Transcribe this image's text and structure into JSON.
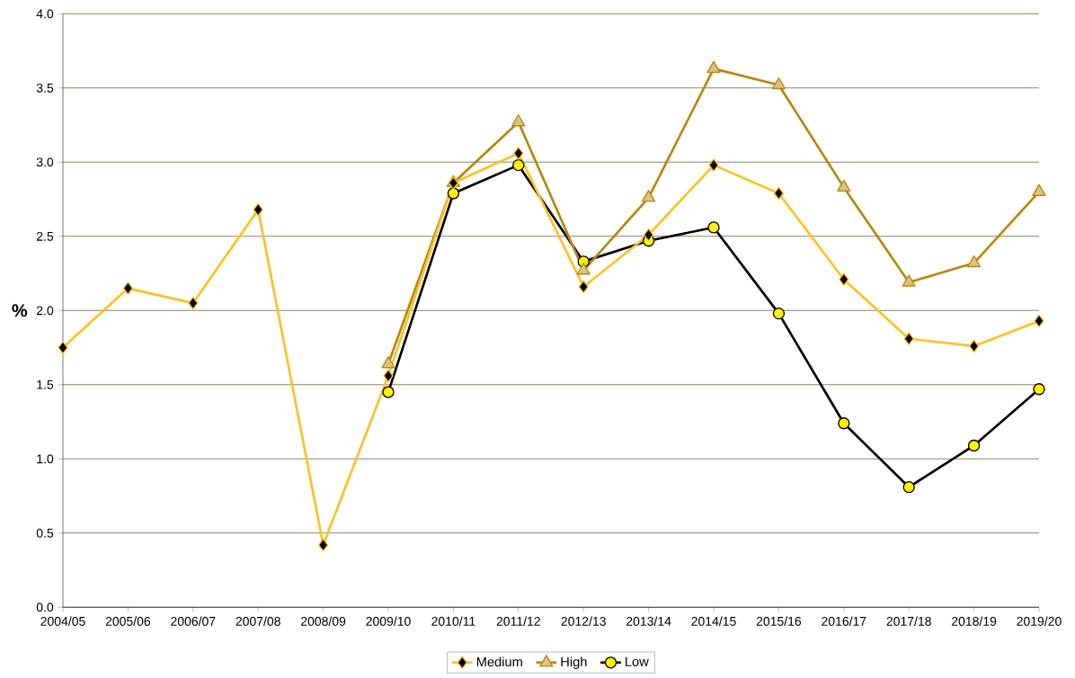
{
  "chart_data": {
    "type": "line",
    "ylabel": "%",
    "categories": [
      "2004/05",
      "2005/06",
      "2006/07",
      "2007/08",
      "2008/09",
      "2009/10",
      "2010/11",
      "2011/12",
      "2012/13",
      "2013/14",
      "2014/15",
      "2015/16",
      "2016/17",
      "2017/18",
      "2018/19",
      "2019/20"
    ],
    "series": [
      {
        "name": "Medium",
        "color": "#ffc020",
        "marker": "diamond",
        "values": [
          1.75,
          2.15,
          2.05,
          2.68,
          0.42,
          1.56,
          2.86,
          3.06,
          2.16,
          2.51,
          2.98,
          2.79,
          2.21,
          1.81,
          1.76,
          1.93
        ]
      },
      {
        "name": "High",
        "color": "#b8860b",
        "marker": "triangle",
        "values": [
          null,
          null,
          null,
          null,
          null,
          1.64,
          2.86,
          3.27,
          2.27,
          2.76,
          3.63,
          3.52,
          2.83,
          2.19,
          2.32,
          2.8
        ]
      },
      {
        "name": "Low",
        "color": "#000000",
        "marker": "circle",
        "values": [
          null,
          null,
          null,
          null,
          null,
          1.45,
          2.79,
          2.98,
          2.33,
          2.47,
          2.56,
          1.98,
          1.24,
          0.81,
          1.09,
          1.47
        ]
      }
    ],
    "ylim": [
      0,
      4
    ],
    "yticks": [
      {
        "value": 0,
        "label": "0.0"
      },
      {
        "value": 0.5,
        "label": "0.5"
      },
      {
        "value": 1,
        "label": "1.0"
      },
      {
        "value": 1.5,
        "label": "1.5"
      },
      {
        "value": 2,
        "label": "2.0"
      },
      {
        "value": 2.5,
        "label": "2.5"
      },
      {
        "value": 3,
        "label": "3.0"
      },
      {
        "value": 3.5,
        "label": "3.5"
      },
      {
        "value": 4,
        "label": "4.0"
      }
    ],
    "grid": "y",
    "legend": "bottom",
    "line_style": "solid"
  }
}
